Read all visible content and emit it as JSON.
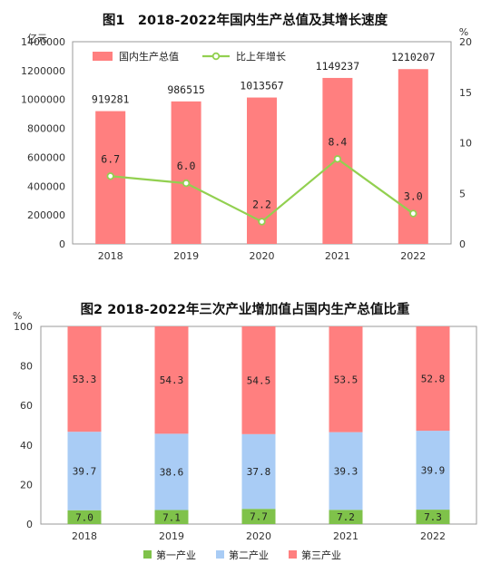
{
  "chart_data": [
    {
      "type": "bar",
      "title": "图1　2018-2022年国内生产总值及其增长速度",
      "categories": [
        "2018",
        "2019",
        "2020",
        "2021",
        "2022"
      ],
      "left_axis_unit": "亿元",
      "right_axis_unit": "%",
      "ylim": [
        0,
        1400000
      ],
      "y_ticks": [
        "0",
        "200000",
        "400000",
        "600000",
        "800000",
        "1000000",
        "1200000",
        "1400000"
      ],
      "y2lim": [
        0,
        20
      ],
      "y2_ticks": [
        "0",
        "5",
        "10",
        "15",
        "20"
      ],
      "legend_position": "top-left",
      "series": [
        {
          "name": "国内生产总值",
          "type": "bar",
          "axis": "left",
          "color": "#ff7f7f",
          "values": [
            919281,
            986515,
            1013567,
            1149237,
            1210207
          ]
        },
        {
          "name": "比上年增长",
          "type": "line",
          "axis": "right",
          "color": "#92d050",
          "values": [
            6.7,
            6.0,
            2.2,
            8.4,
            3.0
          ],
          "labels": [
            "6.7",
            "6.0",
            "2.2",
            "8.4",
            "3.0"
          ]
        }
      ]
    },
    {
      "type": "bar",
      "stacked": true,
      "title": "图2 2018-2022年三次产业增加值占国内生产总值比重",
      "categories": [
        "2018",
        "2019",
        "2020",
        "2021",
        "2022"
      ],
      "ylabel": "%",
      "ylim": [
        0,
        100
      ],
      "y_ticks": [
        "0",
        "20",
        "40",
        "60",
        "80",
        "100"
      ],
      "legend_position": "bottom",
      "series": [
        {
          "name": "第一产业",
          "color": "#7fc24a",
          "values": [
            7.0,
            7.1,
            7.7,
            7.2,
            7.3
          ],
          "labels": [
            "7.0",
            "7.1",
            "7.7",
            "7.2",
            "7.3"
          ]
        },
        {
          "name": "第二产业",
          "color": "#a9ccf5",
          "values": [
            39.7,
            38.6,
            37.8,
            39.3,
            39.9
          ],
          "labels": [
            "39.7",
            "38.6",
            "37.8",
            "39.3",
            "39.9"
          ]
        },
        {
          "name": "第三产业",
          "color": "#ff7f7f",
          "values": [
            53.3,
            54.3,
            54.5,
            53.5,
            52.8
          ],
          "labels": [
            "53.3",
            "54.3",
            "54.5",
            "53.5",
            "52.8"
          ]
        }
      ]
    }
  ]
}
